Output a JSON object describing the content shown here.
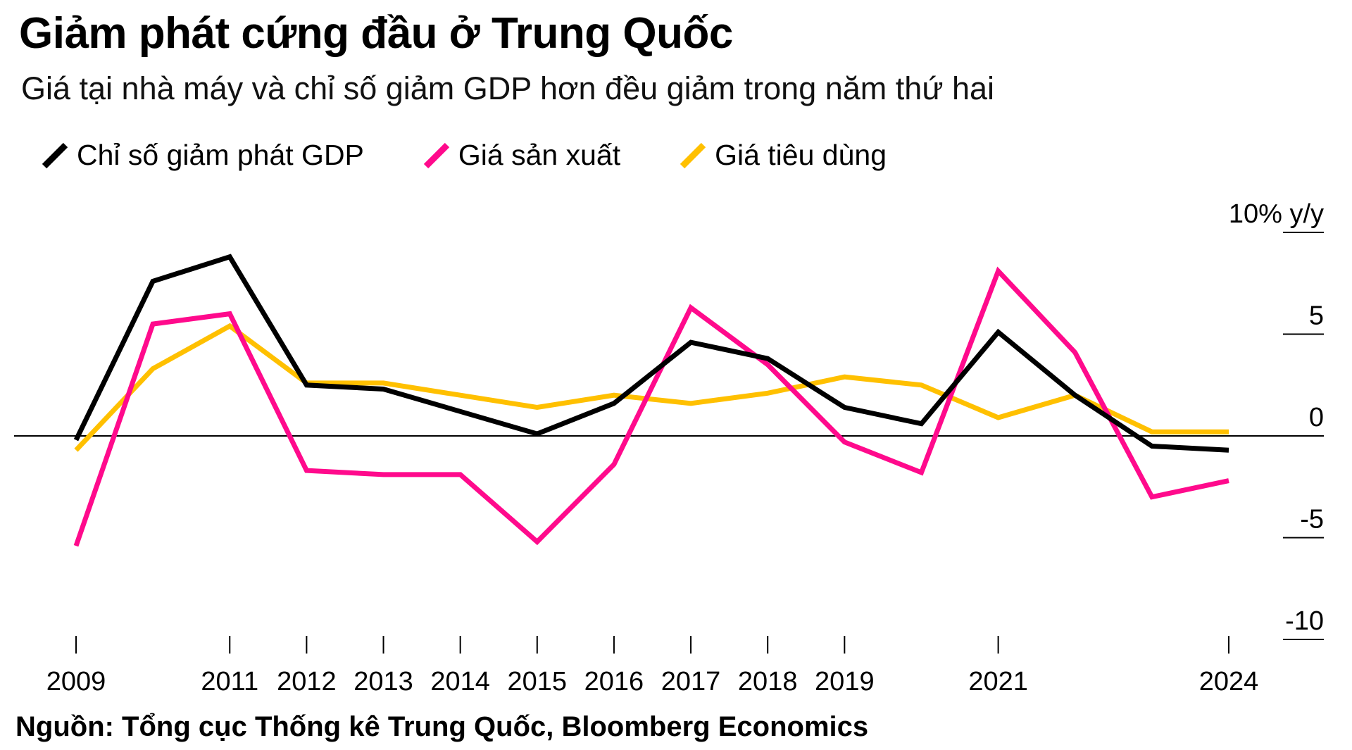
{
  "title": "Giảm phát cứng đầu ở Trung Quốc",
  "subtitle": "Giá tại nhà máy và chỉ số giảm GDP hơn đều giảm trong năm thứ hai",
  "source": "Nguồn: Tổng cục Thống kê Trung Quốc, Bloomberg Economics",
  "legend": [
    {
      "label": "Chỉ số giảm phát GDP",
      "color": "#000000"
    },
    {
      "label": "Giá sản xuất",
      "color": "#ff0a8c"
    },
    {
      "label": "Giá tiêu dùng",
      "color": "#ffc000"
    }
  ],
  "chart_data": {
    "type": "line",
    "title": "Giảm phát cứng đầu ở Trung Quốc",
    "subtitle": "Giá tại nhà máy và chỉ số giảm GDP hơn đều giảm trong năm thứ hai",
    "x": [
      2009,
      2010,
      2011,
      2012,
      2013,
      2014,
      2015,
      2016,
      2017,
      2018,
      2019,
      2020,
      2021,
      2022,
      2023,
      2024
    ],
    "x_tick_labels": [
      {
        "year": 2009,
        "label": "2009"
      },
      {
        "year": 2011,
        "label": "2011"
      },
      {
        "year": 2012,
        "label": "2012"
      },
      {
        "year": 2013,
        "label": "2013"
      },
      {
        "year": 2014,
        "label": "2014"
      },
      {
        "year": 2015,
        "label": "2015"
      },
      {
        "year": 2016,
        "label": "2016"
      },
      {
        "year": 2017,
        "label": "2017"
      },
      {
        "year": 2018,
        "label": "2018"
      },
      {
        "year": 2019,
        "label": "2019"
      },
      {
        "year": 2021,
        "label": "2021"
      },
      {
        "year": 2024,
        "label": "2024"
      }
    ],
    "x_ticks": [
      2009,
      2011,
      2012,
      2013,
      2014,
      2015,
      2016,
      2017,
      2018,
      2019,
      2021,
      2024
    ],
    "y_ticks": [
      {
        "value": 10,
        "label": "10% y/y"
      },
      {
        "value": 5,
        "label": "5"
      },
      {
        "value": 0,
        "label": "0"
      },
      {
        "value": -5,
        "label": "-5"
      },
      {
        "value": -10,
        "label": "-10"
      }
    ],
    "ylim": [
      -10,
      10
    ],
    "xlabel": "",
    "ylabel": "% y/y",
    "series": [
      {
        "name": "Chỉ số giảm phát GDP",
        "color": "#000000",
        "values": [
          -0.2,
          7.6,
          8.8,
          2.5,
          2.3,
          1.2,
          0.1,
          1.6,
          4.6,
          3.8,
          1.4,
          0.6,
          5.1,
          2.0,
          -0.5,
          -0.7
        ]
      },
      {
        "name": "Giá sản xuất",
        "color": "#ff0a8c",
        "values": [
          -5.4,
          5.5,
          6.0,
          -1.7,
          -1.9,
          -1.9,
          -5.2,
          -1.4,
          6.3,
          3.5,
          -0.3,
          -1.8,
          8.1,
          4.1,
          -3.0,
          -2.2
        ]
      },
      {
        "name": "Giá tiêu dùng",
        "color": "#ffc000",
        "values": [
          -0.7,
          3.3,
          5.4,
          2.6,
          2.6,
          2.0,
          1.4,
          2.0,
          1.6,
          2.1,
          2.9,
          2.5,
          0.9,
          2.0,
          0.2,
          0.2
        ]
      }
    ]
  }
}
